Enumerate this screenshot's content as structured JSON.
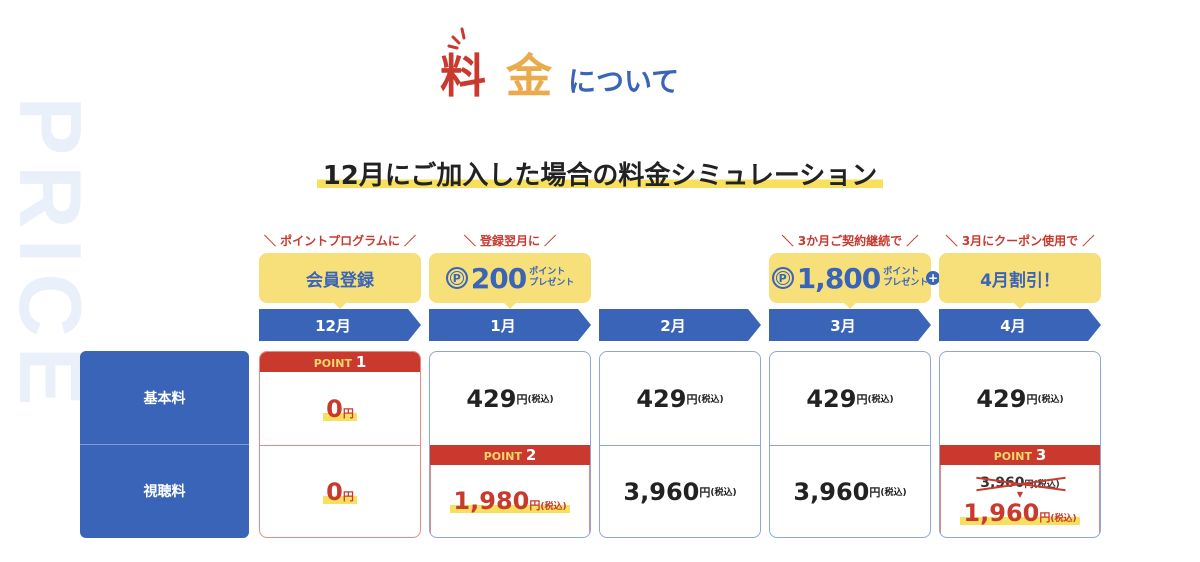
{
  "watermark": "PRICE",
  "title": {
    "part1": "料",
    "part2": "金",
    "part3": "について"
  },
  "heading": "12月にご加入した場合の料金シミュレーション",
  "row_labels": [
    "基本料",
    "視聴料"
  ],
  "columns": [
    {
      "month": "12月",
      "note": "＼ ポイントプログラムに ／",
      "bubble": "会員登録",
      "point_label": "POINT",
      "point_num": "1",
      "basic": "0",
      "view": "0",
      "yen": "円"
    },
    {
      "month": "1月",
      "note": "＼ 登録翌月に ／",
      "bubble_points": "200",
      "bubble_points_label": "ポイント\nプレゼント",
      "basic": "429",
      "view": "1,980",
      "point_label": "POINT",
      "point_num": "2",
      "yen": "円",
      "tax": "(税込)"
    },
    {
      "month": "2月",
      "basic": "429",
      "view": "3,960",
      "yen": "円",
      "tax": "(税込)"
    },
    {
      "month": "3月",
      "note": "＼ 3か月ご契約継続で ／",
      "bubble_points": "1,800",
      "bubble_points_label": "ポイント\nプレゼント",
      "basic": "429",
      "view": "3,960",
      "yen": "円",
      "tax": "(税込)"
    },
    {
      "month": "4月",
      "note": "＼ 3月にクーポン使用で ／",
      "bubble": "4月割引！",
      "basic": "429",
      "view_old": "3,960",
      "view": "1,960",
      "point_label": "POINT",
      "point_num": "3",
      "yen": "円",
      "tax": "(税込)"
    }
  ],
  "coin_letter": "P",
  "plus": "+",
  "colors": {
    "blue": "#3a64b8",
    "red": "#c9392d",
    "yellow": "#f7e07a",
    "orange": "#e9ab4c"
  }
}
